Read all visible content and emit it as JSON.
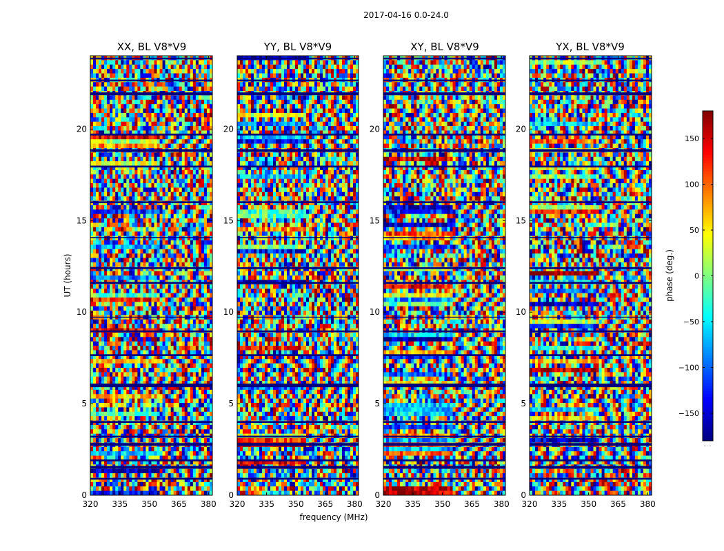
{
  "chart_data": {
    "type": "heatmap",
    "title": "2017-04-16 0.0-24.0",
    "xlabel": "frequency (MHz)",
    "ylabel": "UT (hours)",
    "xlim": [
      320,
      382
    ],
    "ylim": [
      0,
      24
    ],
    "xticks": [
      320,
      335,
      350,
      365,
      380
    ],
    "yticks": [
      0,
      5,
      10,
      15,
      20
    ],
    "colormap": "jet",
    "colorbar": {
      "label": "phase (deg.)",
      "range": [
        -180,
        180
      ],
      "ticks": [
        150,
        100,
        50,
        0,
        -50,
        -100,
        -150
      ],
      "tick_labels": [
        "150",
        "100",
        "50",
        "0",
        "−50",
        "−100",
        "−150"
      ],
      "footer": "....."
    },
    "panels": [
      {
        "title": "XX, BL V8*V9"
      },
      {
        "title": "YY, BL V8*V9"
      },
      {
        "title": "XY, BL V8*V9"
      },
      {
        "title": "YX, BL V8*V9"
      }
    ],
    "flagged_bands_hours": [
      [
        0.85,
        0.95
      ],
      [
        1.45,
        1.6
      ],
      [
        1.85,
        1.95
      ],
      [
        2.7,
        2.85
      ],
      [
        3.15,
        3.25
      ],
      [
        3.95,
        4.05
      ],
      [
        5.9,
        6.1
      ],
      [
        7.6,
        7.7
      ],
      [
        8.9,
        9.0
      ],
      [
        9.7,
        9.75
      ],
      [
        11.55,
        11.65
      ],
      [
        12.35,
        12.45
      ],
      [
        14.05,
        14.1
      ],
      [
        15.95,
        16.05
      ],
      [
        17.9,
        18.0
      ],
      [
        18.75,
        18.9
      ],
      [
        19.65,
        19.75
      ],
      [
        21.85,
        22.0
      ],
      [
        22.6,
        22.7
      ],
      [
        23.8,
        23.9
      ]
    ],
    "colors": {
      "background": "#ffffff",
      "flag": "#00007f",
      "text": "#000000"
    }
  }
}
